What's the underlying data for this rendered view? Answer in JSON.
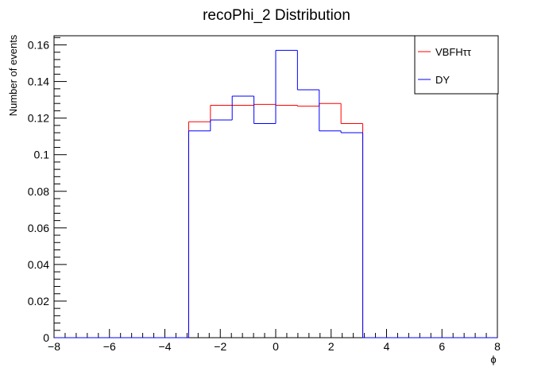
{
  "chart_data": {
    "type": "histogram",
    "title": "recoPhi_2 Distribution",
    "xlabel": "ϕ",
    "ylabel": "Number of events",
    "xlim": [
      -8,
      8
    ],
    "ylim": [
      0,
      0.165
    ],
    "x_ticks": [
      -8,
      -6,
      -4,
      -2,
      0,
      2,
      4,
      6,
      8
    ],
    "x_tick_labels": [
      "−8",
      "−6",
      "−4",
      "−2",
      "0",
      "2",
      "4",
      "6",
      "8"
    ],
    "y_ticks": [
      0,
      0.02,
      0.04,
      0.06,
      0.08,
      0.1,
      0.12,
      0.14,
      0.16
    ],
    "y_tick_labels": [
      "0",
      "0.02",
      "0.04",
      "0.06",
      "0.08",
      "0.1",
      "0.12",
      "0.14",
      "0.16"
    ],
    "grid": false,
    "legend_position": "top-right",
    "bin_edges": [
      -3.1416,
      -2.356,
      -1.571,
      -0.785,
      0.0,
      0.785,
      1.571,
      2.356,
      3.1416
    ],
    "series": [
      {
        "name": "VBFHττ",
        "color": "#ff0000",
        "values": [
          0.118,
          0.127,
          0.127,
          0.1275,
          0.127,
          0.1265,
          0.128,
          0.117
        ]
      },
      {
        "name": "DY",
        "color": "#0000ff",
        "values": [
          0.113,
          0.119,
          0.132,
          0.117,
          0.157,
          0.1355,
          0.113,
          0.112
        ]
      }
    ]
  }
}
